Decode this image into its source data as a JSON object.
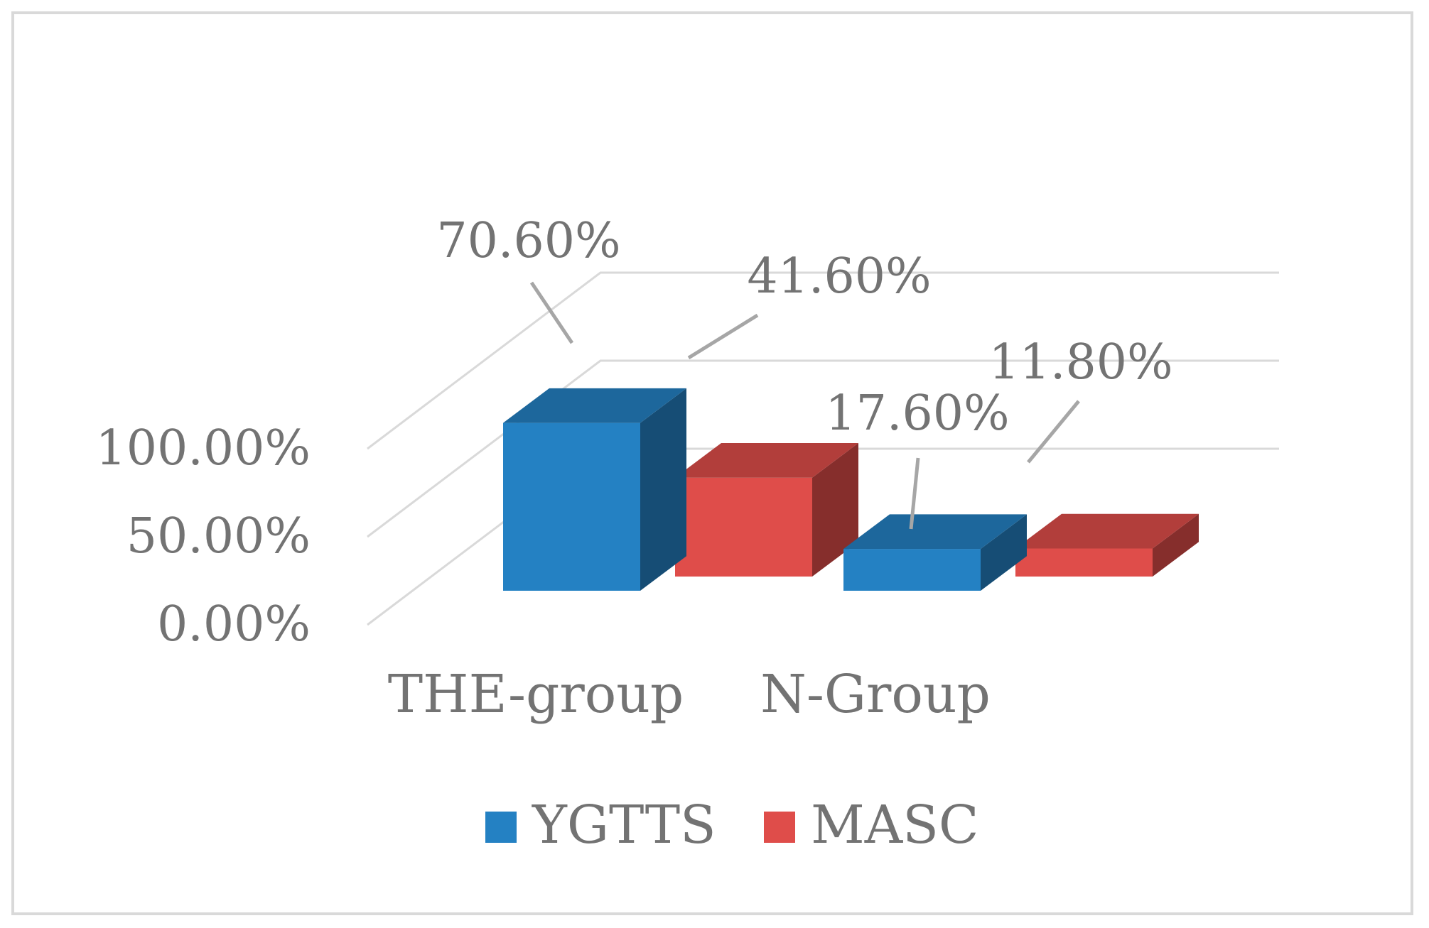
{
  "chart_data": {
    "type": "bar",
    "style": "3d-clustered-column",
    "categories": [
      "THE-group",
      "N-Group"
    ],
    "series": [
      {
        "name": "YGTTS",
        "values": [
          70.6,
          17.6
        ],
        "labels": [
          "70.60%",
          "17.60%"
        ],
        "color": "#2481C3"
      },
      {
        "name": "MASC",
        "values": [
          41.6,
          11.8
        ],
        "labels": [
          "41.60%",
          "11.80%"
        ],
        "color": "#DF4D4A"
      }
    ],
    "y_ticks": [
      "0.00%",
      "50.00%",
      "100.00%"
    ],
    "ylim": [
      0,
      100
    ],
    "grid": true,
    "legend_position": "bottom",
    "title": "",
    "xlabel": "",
    "ylabel": ""
  }
}
